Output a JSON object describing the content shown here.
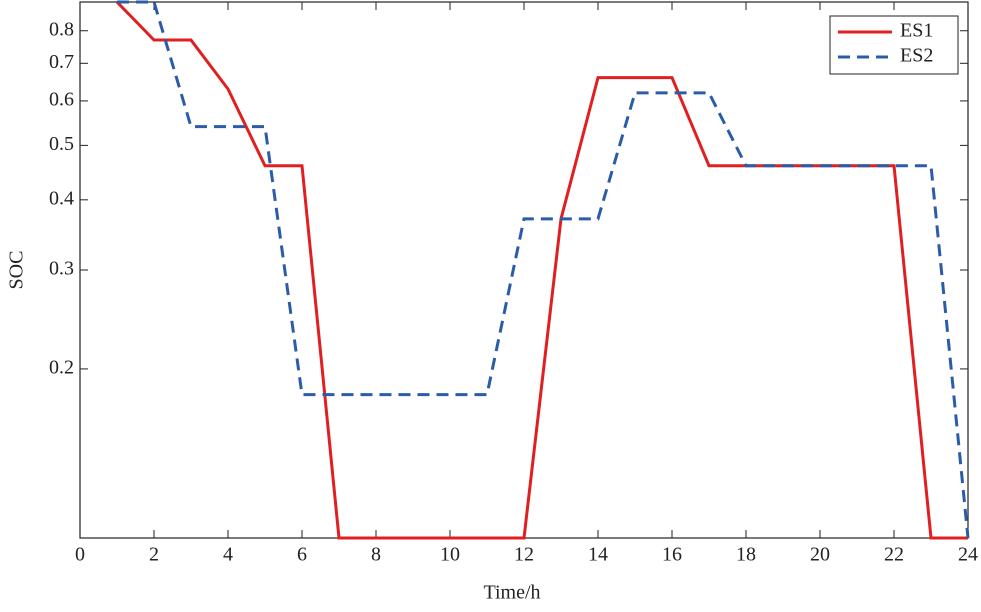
{
  "chart_data": {
    "type": "line",
    "x_label": "Time/h",
    "y_label": "SOC",
    "log_y": true,
    "xlim": [
      0,
      24
    ],
    "xticks": [
      0,
      2,
      4,
      6,
      8,
      10,
      12,
      14,
      16,
      18,
      20,
      22,
      24
    ],
    "ylim": [
      0.1,
      0.9
    ],
    "yticks": [
      0.2,
      0.3,
      0.4,
      0.5,
      0.6,
      0.7,
      0.8
    ],
    "legend": "upper-right",
    "x": [
      1,
      2,
      3,
      4,
      5,
      6,
      7,
      8,
      9,
      10,
      11,
      12,
      13,
      14,
      15,
      16,
      17,
      18,
      19,
      20,
      21,
      22,
      23,
      24
    ],
    "series": [
      {
        "name": "ES1",
        "color": "#e02020",
        "dash": "solid",
        "values": [
          0.9,
          0.77,
          0.77,
          0.63,
          0.46,
          0.46,
          0.1,
          0.1,
          0.1,
          0.1,
          0.1,
          0.1,
          0.37,
          0.66,
          0.66,
          0.66,
          0.46,
          0.46,
          0.46,
          0.46,
          0.46,
          0.46,
          0.1,
          0.1
        ]
      },
      {
        "name": "ES2",
        "color": "#2a5caa",
        "dash": "dashed",
        "values": [
          0.9,
          0.9,
          0.54,
          0.54,
          0.54,
          0.18,
          0.18,
          0.18,
          0.18,
          0.18,
          0.18,
          0.37,
          0.37,
          0.37,
          0.62,
          0.62,
          0.62,
          0.46,
          0.46,
          0.46,
          0.46,
          0.46,
          0.46,
          0.1
        ]
      }
    ]
  }
}
